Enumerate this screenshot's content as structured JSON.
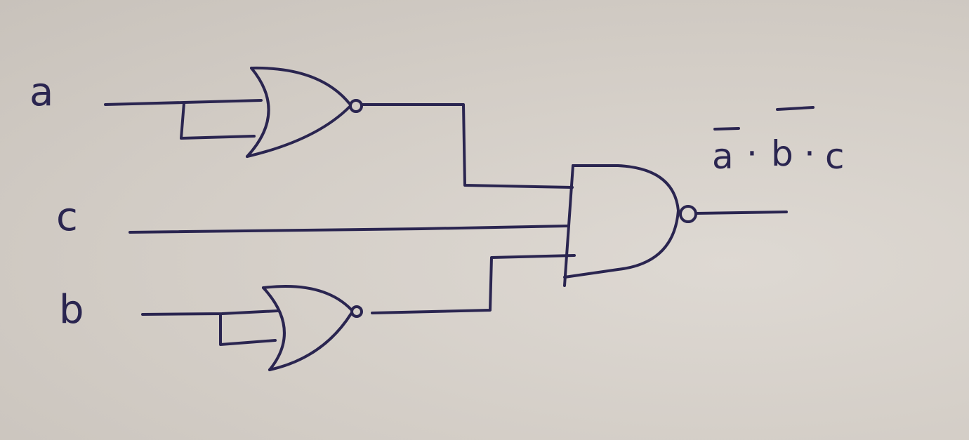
{
  "inputs": {
    "a": "a",
    "c": "c",
    "b": "b"
  },
  "output": {
    "expression_parts": [
      "a",
      "·",
      "b",
      "·",
      "c"
    ]
  },
  "gates": [
    {
      "id": "nor-top",
      "type": "NOR",
      "inputs": [
        "a",
        "a"
      ]
    },
    {
      "id": "nor-bottom",
      "type": "NOR",
      "inputs": [
        "b",
        "b"
      ]
    },
    {
      "id": "nand-main",
      "type": "NAND",
      "inputs": [
        "nor-top",
        "c",
        "nor-bottom"
      ]
    }
  ],
  "colors": {
    "ink": "#2a2550",
    "paper": "#d6d0c9"
  }
}
